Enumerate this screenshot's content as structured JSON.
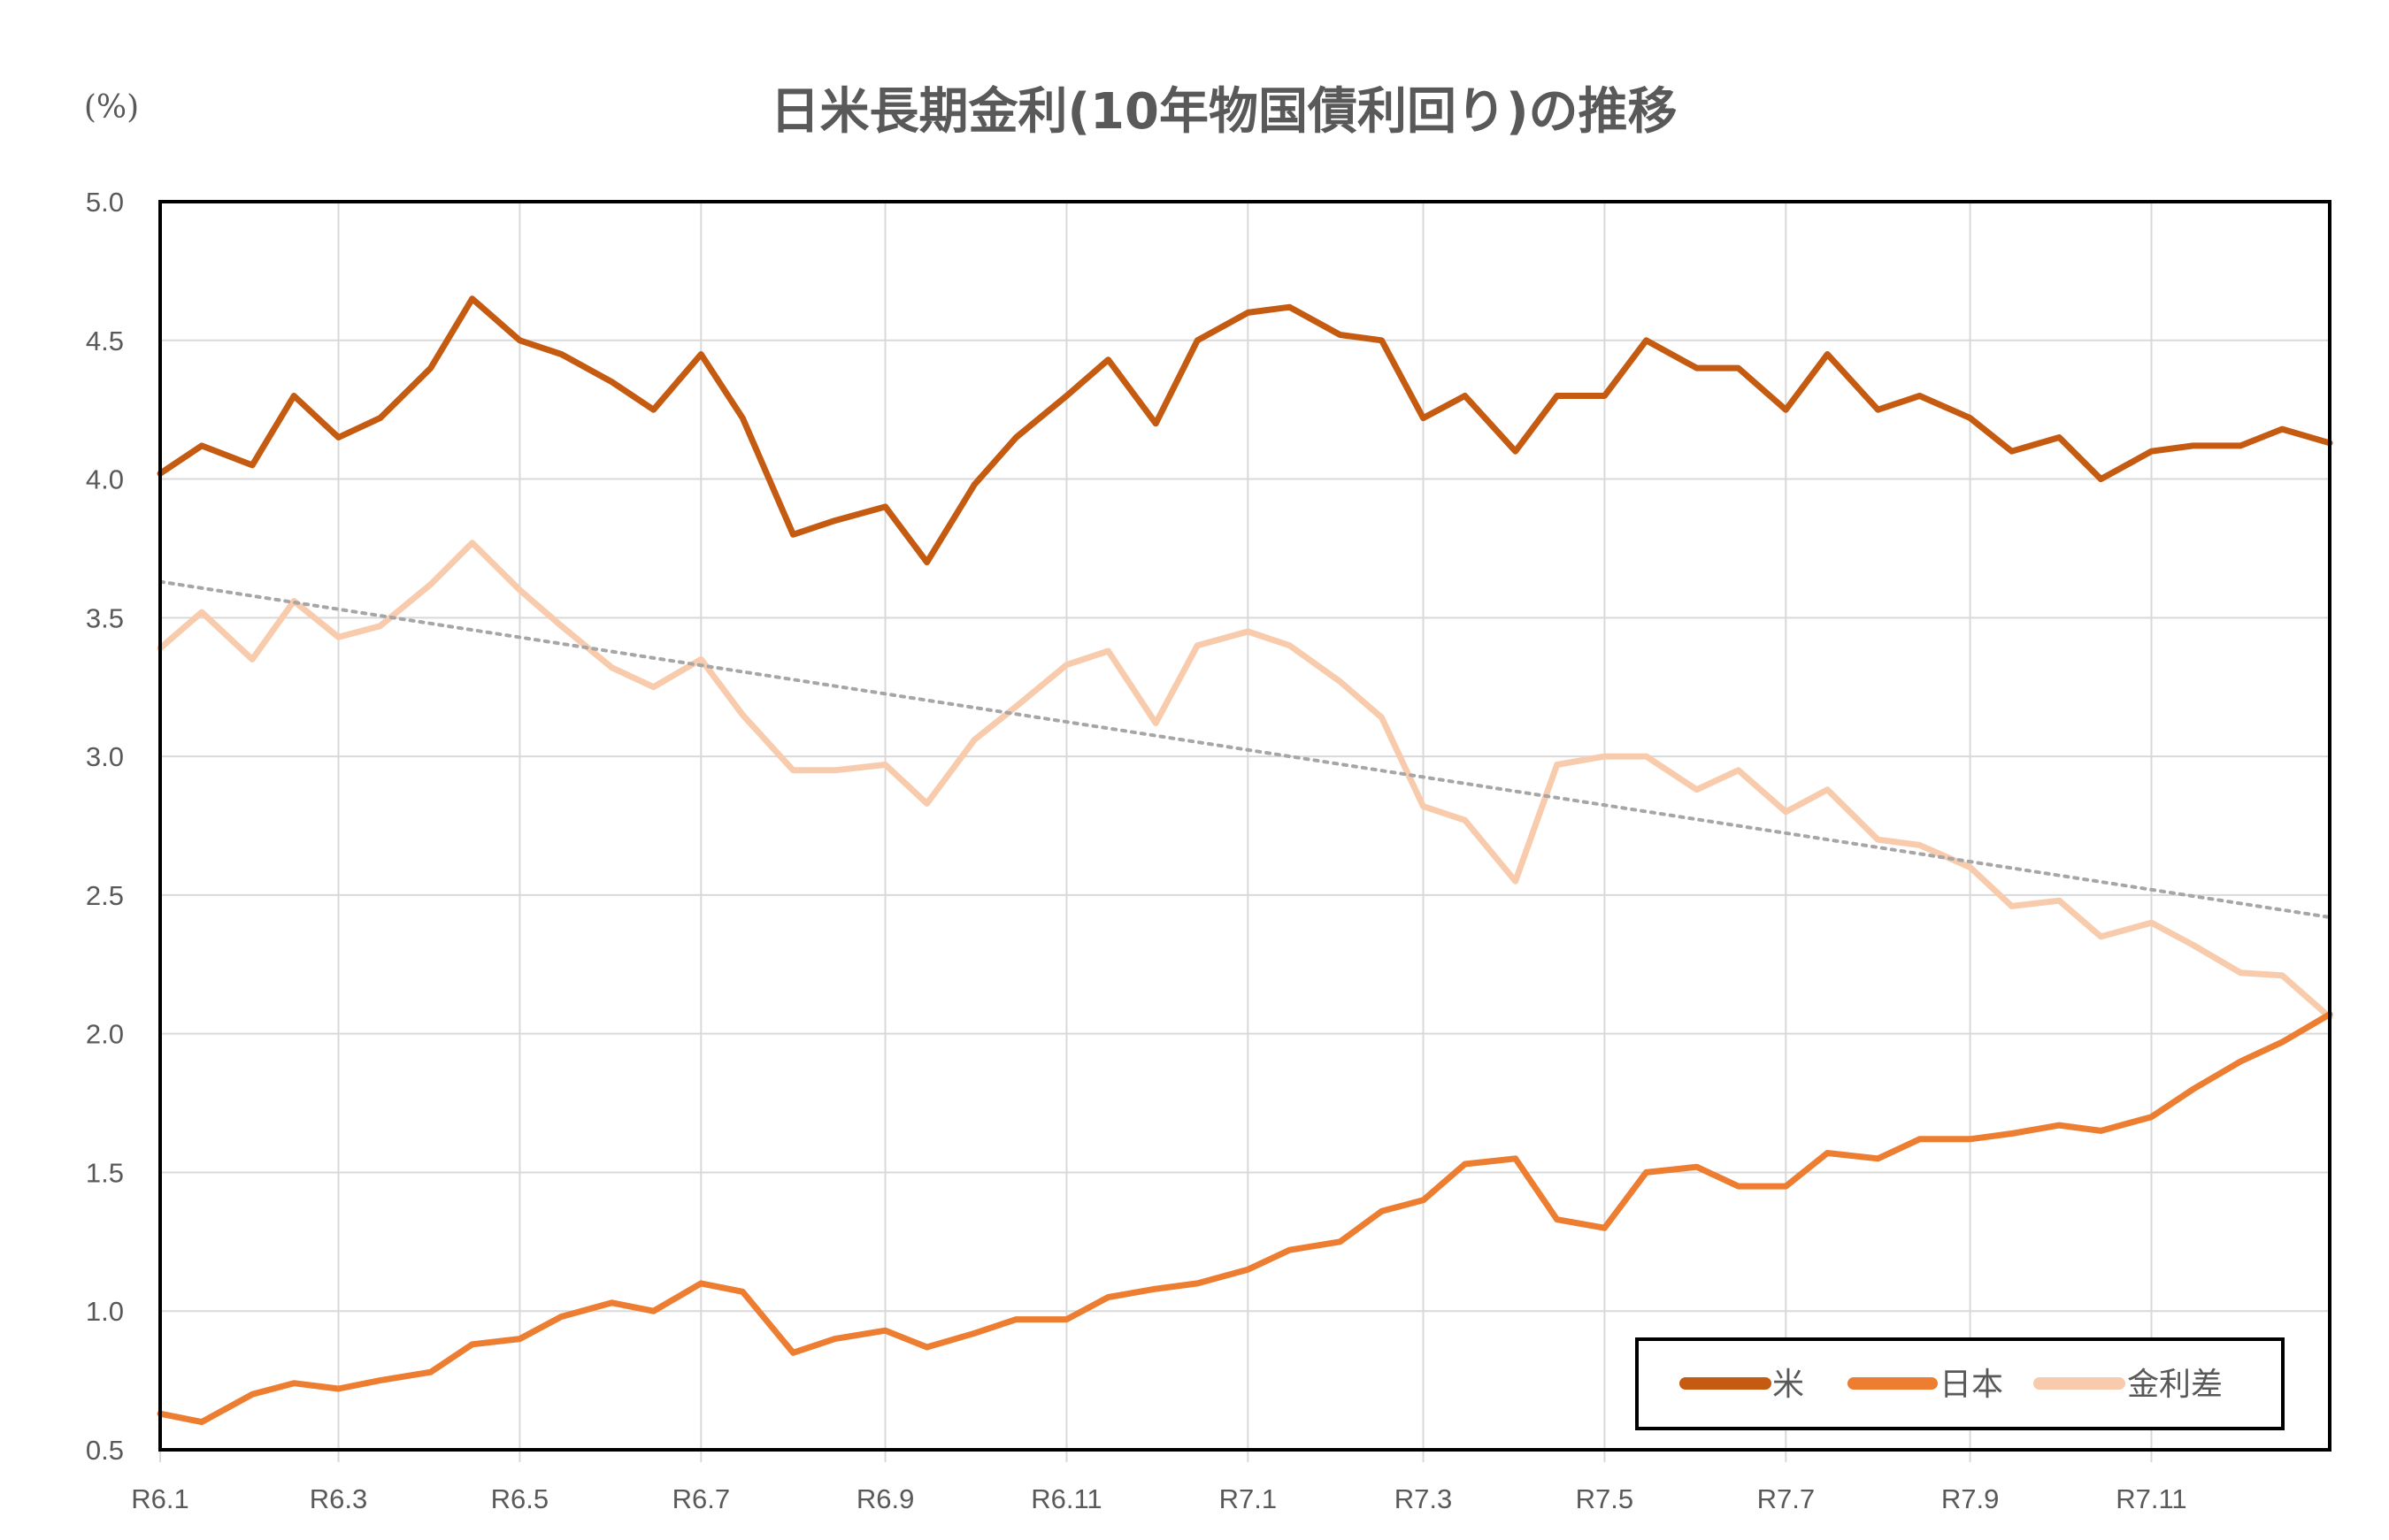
{
  "chart_data": {
    "type": "line",
    "title": "日米長期金利(10年物国債利回り)の推移",
    "ylabel": "(%)",
    "xlabel": "",
    "ylim": [
      0.5,
      5.0
    ],
    "yticks": [
      "0.5",
      "1.0",
      "1.5",
      "2.0",
      "2.5",
      "3.0",
      "3.5",
      "4.0",
      "4.5",
      "5.0"
    ],
    "xlim": [
      "2024-01-01",
      "2025-12-31"
    ],
    "xticks": [
      {
        "label": "R6.1",
        "date": "2024-01-01"
      },
      {
        "label": "R6.3",
        "date": "2024-03-01"
      },
      {
        "label": "R6.5",
        "date": "2024-05-01"
      },
      {
        "label": "R6.7",
        "date": "2024-07-01"
      },
      {
        "label": "R6.9",
        "date": "2024-09-01"
      },
      {
        "label": "R6.11",
        "date": "2024-11-01"
      },
      {
        "label": "R7.1",
        "date": "2025-01-01"
      },
      {
        "label": "R7.3",
        "date": "2025-03-01"
      },
      {
        "label": "R7.5",
        "date": "2025-05-01"
      },
      {
        "label": "R7.7",
        "date": "2025-07-01"
      },
      {
        "label": "R7.9",
        "date": "2025-09-01"
      },
      {
        "label": "R7.11",
        "date": "2025-11-01"
      }
    ],
    "grid": {
      "vertical": true,
      "horizontal": true
    },
    "legend_position": "bottom-right",
    "x": [
      "2024-01-01",
      "2024-01-15",
      "2024-02-01",
      "2024-02-15",
      "2024-03-01",
      "2024-03-15",
      "2024-04-01",
      "2024-04-15",
      "2024-05-01",
      "2024-05-15",
      "2024-06-01",
      "2024-06-15",
      "2024-07-01",
      "2024-07-15",
      "2024-08-01",
      "2024-08-15",
      "2024-09-01",
      "2024-09-15",
      "2024-10-01",
      "2024-10-15",
      "2024-11-01",
      "2024-11-15",
      "2024-12-01",
      "2024-12-15",
      "2025-01-01",
      "2025-01-15",
      "2025-02-01",
      "2025-02-15",
      "2025-03-01",
      "2025-03-15",
      "2025-04-01",
      "2025-04-15",
      "2025-05-01",
      "2025-05-15",
      "2025-06-01",
      "2025-06-15",
      "2025-07-01",
      "2025-07-15",
      "2025-08-01",
      "2025-08-15",
      "2025-09-01",
      "2025-09-15",
      "2025-10-01",
      "2025-10-15",
      "2025-11-01",
      "2025-11-15",
      "2025-12-01",
      "2025-12-15",
      "2025-12-31"
    ],
    "series": [
      {
        "name": "米",
        "color": "#C55A11",
        "values": [
          4.02,
          4.12,
          4.05,
          4.3,
          4.15,
          4.22,
          4.4,
          4.65,
          4.5,
          4.45,
          4.35,
          4.25,
          4.45,
          4.22,
          3.8,
          3.85,
          3.9,
          3.7,
          3.98,
          4.15,
          4.3,
          4.43,
          4.2,
          4.5,
          4.6,
          4.62,
          4.52,
          4.5,
          4.22,
          4.3,
          4.1,
          4.3,
          4.3,
          4.5,
          4.4,
          4.4,
          4.25,
          4.45,
          4.25,
          4.3,
          4.22,
          4.1,
          4.15,
          4.0,
          4.1,
          4.12,
          4.12,
          4.18,
          4.13
        ]
      },
      {
        "name": "日本",
        "color": "#ED7D31",
        "values": [
          0.63,
          0.6,
          0.7,
          0.74,
          0.72,
          0.75,
          0.78,
          0.88,
          0.9,
          0.98,
          1.03,
          1.0,
          1.1,
          1.07,
          0.85,
          0.9,
          0.93,
          0.87,
          0.92,
          0.97,
          0.97,
          1.05,
          1.08,
          1.1,
          1.15,
          1.22,
          1.25,
          1.36,
          1.4,
          1.53,
          1.55,
          1.33,
          1.3,
          1.5,
          1.52,
          1.45,
          1.45,
          1.57,
          1.55,
          1.62,
          1.62,
          1.64,
          1.67,
          1.65,
          1.7,
          1.8,
          1.9,
          1.97,
          2.07
        ]
      },
      {
        "name": "金利差",
        "color": "#F8CBAD",
        "values": [
          3.39,
          3.52,
          3.35,
          3.56,
          3.43,
          3.47,
          3.62,
          3.77,
          3.6,
          3.47,
          3.32,
          3.25,
          3.35,
          3.15,
          2.95,
          2.95,
          2.97,
          2.83,
          3.06,
          3.18,
          3.33,
          3.38,
          3.12,
          3.4,
          3.45,
          3.4,
          3.27,
          3.14,
          2.82,
          2.77,
          2.55,
          2.97,
          3.0,
          3.0,
          2.88,
          2.95,
          2.8,
          2.88,
          2.7,
          2.68,
          2.6,
          2.46,
          2.48,
          2.35,
          2.4,
          2.32,
          2.22,
          2.21,
          2.06
        ]
      }
    ],
    "trendline": {
      "of": "金利差",
      "type": "linear",
      "style": "dotted",
      "color": "#A6A6A6",
      "start": 3.63,
      "end": 2.42
    }
  }
}
